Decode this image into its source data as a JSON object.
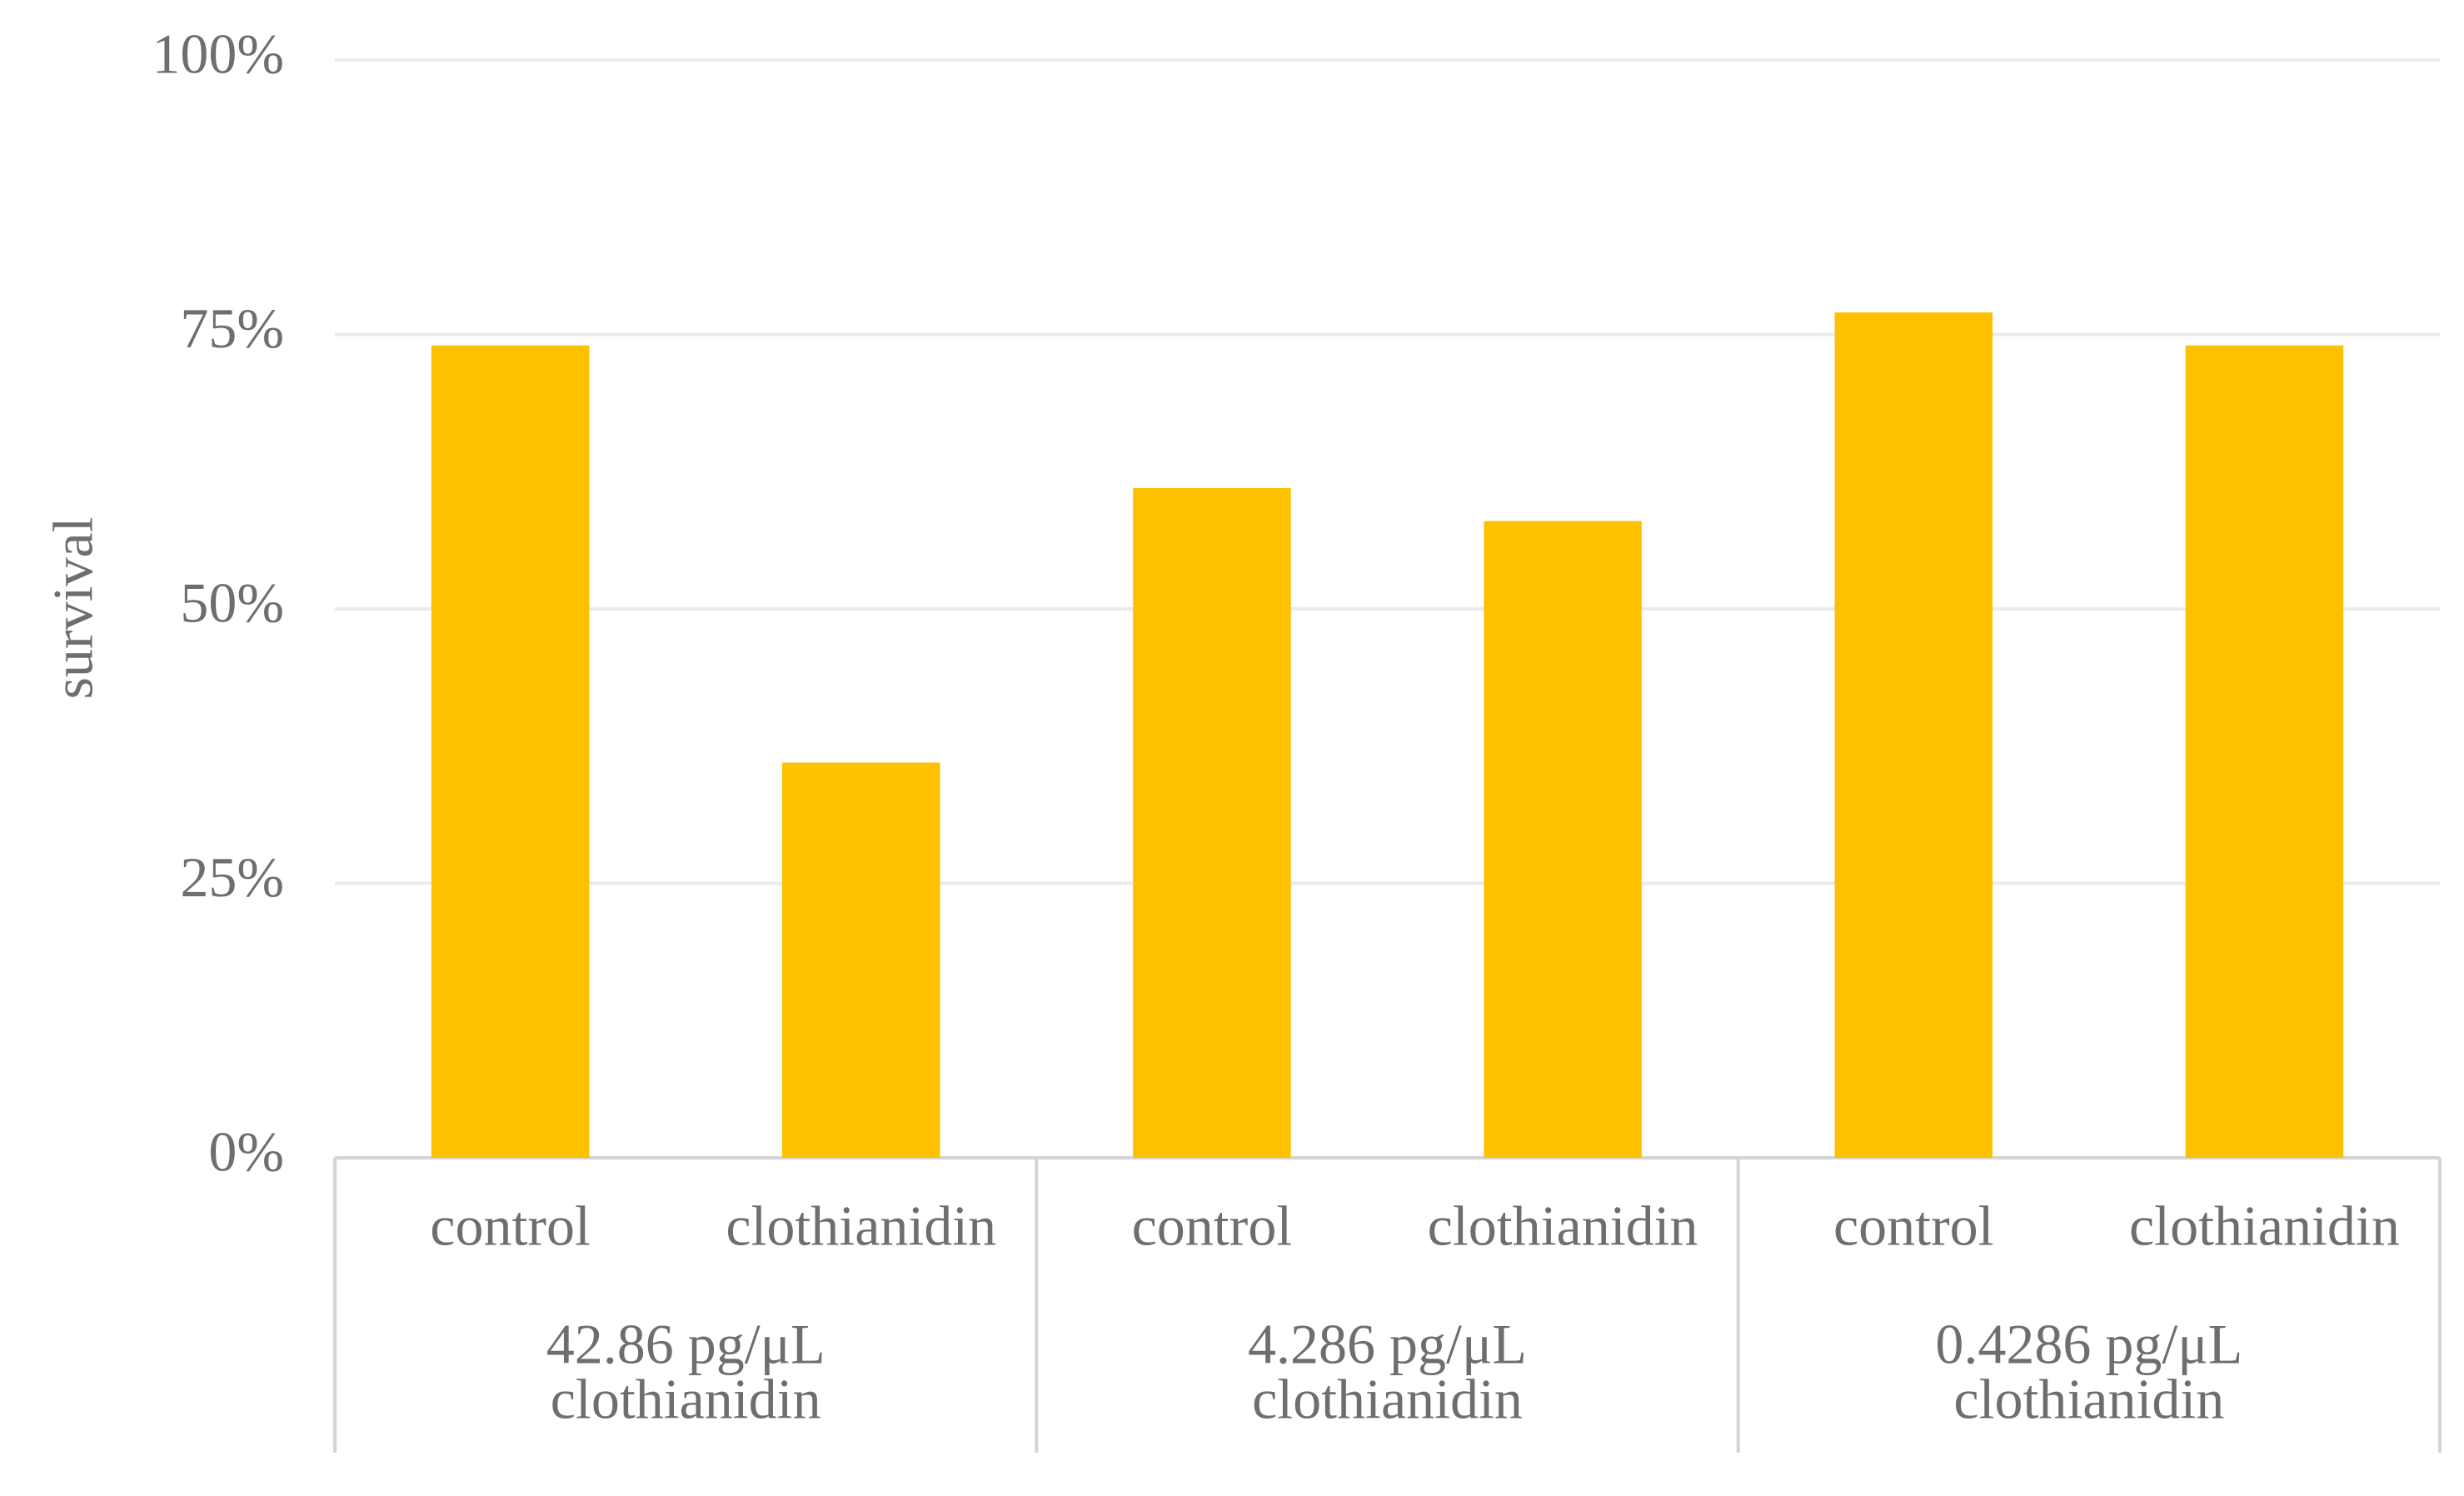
{
  "chart_data": {
    "type": "bar",
    "y_label": "survival",
    "color": "#ffc000",
    "grid": true,
    "ylim": [
      0,
      100
    ],
    "yticks": [
      {
        "value": 0,
        "label": "0%"
      },
      {
        "value": 25,
        "label": "25%"
      },
      {
        "value": 50,
        "label": "50%"
      },
      {
        "value": 75,
        "label": "75%"
      },
      {
        "value": 100,
        "label": "100%"
      }
    ],
    "groups": [
      {
        "label": [
          "42.86 pg/μL",
          "clothianidin"
        ],
        "categories": [
          "control",
          "clothianidin"
        ],
        "values": [
          74,
          36
        ]
      },
      {
        "label": [
          "4.286 pg/μL",
          "clothianidin"
        ],
        "categories": [
          "control",
          "clothianidin"
        ],
        "values": [
          61,
          58
        ]
      },
      {
        "label": [
          "0.4286 pg/μL",
          "clothianidin"
        ],
        "categories": [
          "control",
          "clothianidin"
        ],
        "values": [
          77,
          74
        ]
      }
    ]
  }
}
